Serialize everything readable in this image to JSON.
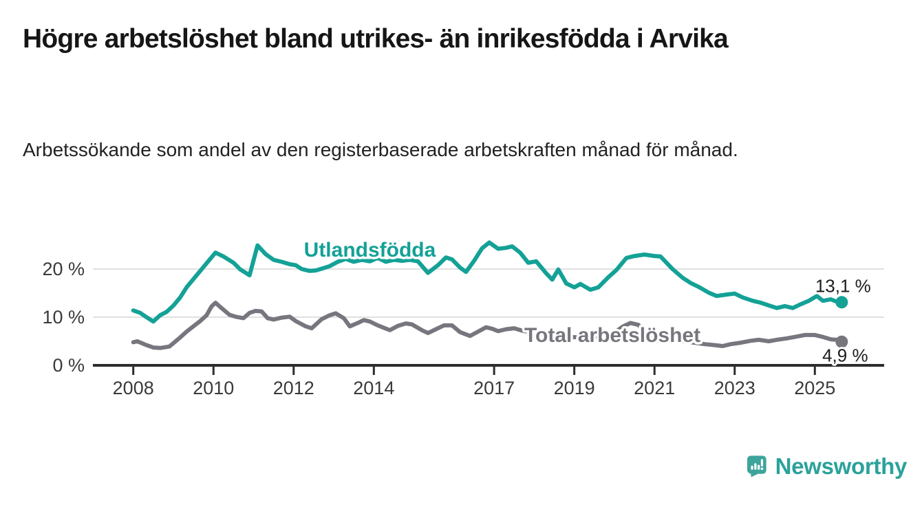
{
  "header": {
    "title": "Högre arbetslöshet bland utrikes- än inrikesfödda i Arvika",
    "subtitle": "Arbetssökande som andel av den registerbaserade arbetskraften månad för månad."
  },
  "branding": {
    "wordmark": "Newsworthy",
    "logo_icon": "speech-bubble-bar-chart-icon",
    "brand_color": "#2aa29b",
    "logo_bubble_color": "#3da49b"
  },
  "chart_data": {
    "type": "line",
    "title": "Högre arbetslöshet bland utrikes- än inrikesfödda i Arvika",
    "subtitle": "Arbetssökande som andel av den registerbaserade arbetskraften månad för månad.",
    "unit": "percent",
    "x_ticks": [
      2008,
      2010,
      2012,
      2014,
      2017,
      2019,
      2021,
      2023,
      2025
    ],
    "xlim": [
      2007.0,
      2026.7
    ],
    "y_ticks": [
      0,
      10,
      20
    ],
    "y_tick_suffix": " %",
    "ylim": [
      0,
      26.6
    ],
    "grid": "horizontal",
    "axis_color": "#2d2d2d",
    "grid_color": "#e0e0e0",
    "tick_label_color": "#3a3a3a",
    "annotation_color": "#1c1c1c",
    "series": [
      {
        "name": "Utlandsfödda",
        "color": "#14a196",
        "end_value": 13.1,
        "end_label": "13,1 %",
        "end_label_side": "above",
        "label_pos": {
          "t": 2013.9,
          "v": 24.0
        },
        "points": [
          [
            2008.0,
            11.4
          ],
          [
            2008.17,
            10.9
          ],
          [
            2008.33,
            10.0
          ],
          [
            2008.5,
            9.1
          ],
          [
            2008.67,
            10.4
          ],
          [
            2008.83,
            11.1
          ],
          [
            2009.0,
            12.4
          ],
          [
            2009.17,
            14.1
          ],
          [
            2009.33,
            16.2
          ],
          [
            2009.5,
            17.9
          ],
          [
            2009.67,
            19.6
          ],
          [
            2009.83,
            21.2
          ],
          [
            2010.05,
            23.4
          ],
          [
            2010.25,
            22.6
          ],
          [
            2010.5,
            21.3
          ],
          [
            2010.67,
            19.9
          ],
          [
            2010.9,
            18.7
          ],
          [
            2011.1,
            24.9
          ],
          [
            2011.3,
            23.1
          ],
          [
            2011.5,
            21.9
          ],
          [
            2011.7,
            21.5
          ],
          [
            2011.9,
            21.0
          ],
          [
            2012.05,
            20.8
          ],
          [
            2012.2,
            20.0
          ],
          [
            2012.4,
            19.6
          ],
          [
            2012.55,
            19.7
          ],
          [
            2012.75,
            20.2
          ],
          [
            2012.9,
            20.6
          ],
          [
            2013.1,
            21.5
          ],
          [
            2013.3,
            22.1
          ],
          [
            2013.5,
            21.5
          ],
          [
            2013.7,
            21.9
          ],
          [
            2013.9,
            21.6
          ],
          [
            2014.1,
            22.3
          ],
          [
            2014.3,
            21.5
          ],
          [
            2014.5,
            21.9
          ],
          [
            2014.7,
            21.7
          ],
          [
            2014.9,
            21.9
          ],
          [
            2015.1,
            21.6
          ],
          [
            2015.35,
            19.2
          ],
          [
            2015.6,
            20.8
          ],
          [
            2015.8,
            22.4
          ],
          [
            2015.95,
            22.0
          ],
          [
            2016.15,
            20.3
          ],
          [
            2016.3,
            19.4
          ],
          [
            2016.5,
            21.7
          ],
          [
            2016.7,
            24.3
          ],
          [
            2016.88,
            25.5
          ],
          [
            2017.1,
            24.2
          ],
          [
            2017.3,
            24.4
          ],
          [
            2017.45,
            24.7
          ],
          [
            2017.65,
            23.4
          ],
          [
            2017.85,
            21.3
          ],
          [
            2018.05,
            21.6
          ],
          [
            2018.3,
            19.1
          ],
          [
            2018.45,
            17.8
          ],
          [
            2018.6,
            19.9
          ],
          [
            2018.8,
            17.0
          ],
          [
            2019.0,
            16.2
          ],
          [
            2019.15,
            16.9
          ],
          [
            2019.4,
            15.7
          ],
          [
            2019.6,
            16.2
          ],
          [
            2019.85,
            18.3
          ],
          [
            2020.05,
            19.8
          ],
          [
            2020.3,
            22.3
          ],
          [
            2020.5,
            22.7
          ],
          [
            2020.75,
            23.0
          ],
          [
            2021.0,
            22.7
          ],
          [
            2021.15,
            22.6
          ],
          [
            2021.45,
            20.0
          ],
          [
            2021.7,
            18.2
          ],
          [
            2021.9,
            17.1
          ],
          [
            2022.1,
            16.3
          ],
          [
            2022.35,
            15.1
          ],
          [
            2022.55,
            14.4
          ],
          [
            2022.8,
            14.7
          ],
          [
            2023.0,
            14.9
          ],
          [
            2023.2,
            14.1
          ],
          [
            2023.45,
            13.4
          ],
          [
            2023.65,
            13.0
          ],
          [
            2023.9,
            12.3
          ],
          [
            2024.05,
            11.9
          ],
          [
            2024.25,
            12.3
          ],
          [
            2024.45,
            11.9
          ],
          [
            2024.65,
            12.7
          ],
          [
            2024.85,
            13.4
          ],
          [
            2025.05,
            14.4
          ],
          [
            2025.2,
            13.4
          ],
          [
            2025.4,
            13.7
          ],
          [
            2025.55,
            13.2
          ],
          [
            2025.67,
            13.1
          ]
        ]
      },
      {
        "name": "Total arbetslöshet",
        "color": "#77767e",
        "end_value": 4.9,
        "end_label": "4,9 %",
        "end_label_side": "below",
        "label_pos": {
          "t": 2019.95,
          "v": 6.3
        },
        "points": [
          [
            2008.0,
            4.8
          ],
          [
            2008.1,
            5.0
          ],
          [
            2008.33,
            4.2
          ],
          [
            2008.5,
            3.7
          ],
          [
            2008.67,
            3.6
          ],
          [
            2008.9,
            3.9
          ],
          [
            2009.0,
            4.6
          ],
          [
            2009.17,
            5.8
          ],
          [
            2009.33,
            7.0
          ],
          [
            2009.5,
            8.1
          ],
          [
            2009.67,
            9.2
          ],
          [
            2009.83,
            10.4
          ],
          [
            2009.95,
            12.2
          ],
          [
            2010.05,
            13.0
          ],
          [
            2010.2,
            11.9
          ],
          [
            2010.4,
            10.5
          ],
          [
            2010.55,
            10.1
          ],
          [
            2010.75,
            9.8
          ],
          [
            2010.9,
            10.9
          ],
          [
            2011.05,
            11.3
          ],
          [
            2011.2,
            11.2
          ],
          [
            2011.35,
            9.8
          ],
          [
            2011.5,
            9.5
          ],
          [
            2011.7,
            9.9
          ],
          [
            2011.9,
            10.1
          ],
          [
            2012.05,
            9.2
          ],
          [
            2012.3,
            8.1
          ],
          [
            2012.45,
            7.7
          ],
          [
            2012.7,
            9.6
          ],
          [
            2012.9,
            10.4
          ],
          [
            2013.05,
            10.8
          ],
          [
            2013.25,
            9.8
          ],
          [
            2013.4,
            8.1
          ],
          [
            2013.6,
            8.8
          ],
          [
            2013.75,
            9.4
          ],
          [
            2013.9,
            9.1
          ],
          [
            2014.1,
            8.3
          ],
          [
            2014.25,
            7.8
          ],
          [
            2014.4,
            7.3
          ],
          [
            2014.6,
            8.2
          ],
          [
            2014.8,
            8.7
          ],
          [
            2014.95,
            8.5
          ],
          [
            2015.2,
            7.3
          ],
          [
            2015.35,
            6.7
          ],
          [
            2015.55,
            7.5
          ],
          [
            2015.75,
            8.3
          ],
          [
            2015.95,
            8.3
          ],
          [
            2016.15,
            6.9
          ],
          [
            2016.4,
            6.1
          ],
          [
            2016.6,
            7.0
          ],
          [
            2016.8,
            7.9
          ],
          [
            2016.95,
            7.6
          ],
          [
            2017.1,
            7.1
          ],
          [
            2017.3,
            7.5
          ],
          [
            2017.5,
            7.7
          ],
          [
            2017.7,
            7.2
          ],
          [
            2017.9,
            6.9
          ],
          [
            2018.1,
            6.6
          ],
          [
            2018.3,
            6.2
          ],
          [
            2018.5,
            6.5
          ],
          [
            2018.7,
            6.1
          ],
          [
            2018.9,
            5.9
          ],
          [
            2019.1,
            5.8
          ],
          [
            2019.3,
            5.6
          ],
          [
            2019.5,
            5.9
          ],
          [
            2019.75,
            6.1
          ],
          [
            2020.0,
            6.8
          ],
          [
            2020.2,
            8.0
          ],
          [
            2020.4,
            8.8
          ],
          [
            2020.6,
            8.4
          ],
          [
            2020.8,
            6.4
          ],
          [
            2020.95,
            5.4
          ],
          [
            2021.1,
            5.1
          ],
          [
            2021.35,
            5.4
          ],
          [
            2021.55,
            5.1
          ],
          [
            2021.8,
            4.9
          ],
          [
            2022.0,
            4.7
          ],
          [
            2022.25,
            4.4
          ],
          [
            2022.5,
            4.2
          ],
          [
            2022.7,
            4.0
          ],
          [
            2022.9,
            4.4
          ],
          [
            2023.15,
            4.7
          ],
          [
            2023.4,
            5.1
          ],
          [
            2023.6,
            5.3
          ],
          [
            2023.85,
            5.0
          ],
          [
            2024.05,
            5.3
          ],
          [
            2024.3,
            5.6
          ],
          [
            2024.5,
            5.9
          ],
          [
            2024.75,
            6.3
          ],
          [
            2025.0,
            6.3
          ],
          [
            2025.2,
            5.9
          ],
          [
            2025.4,
            5.4
          ],
          [
            2025.55,
            5.3
          ],
          [
            2025.67,
            4.9
          ]
        ]
      }
    ]
  }
}
